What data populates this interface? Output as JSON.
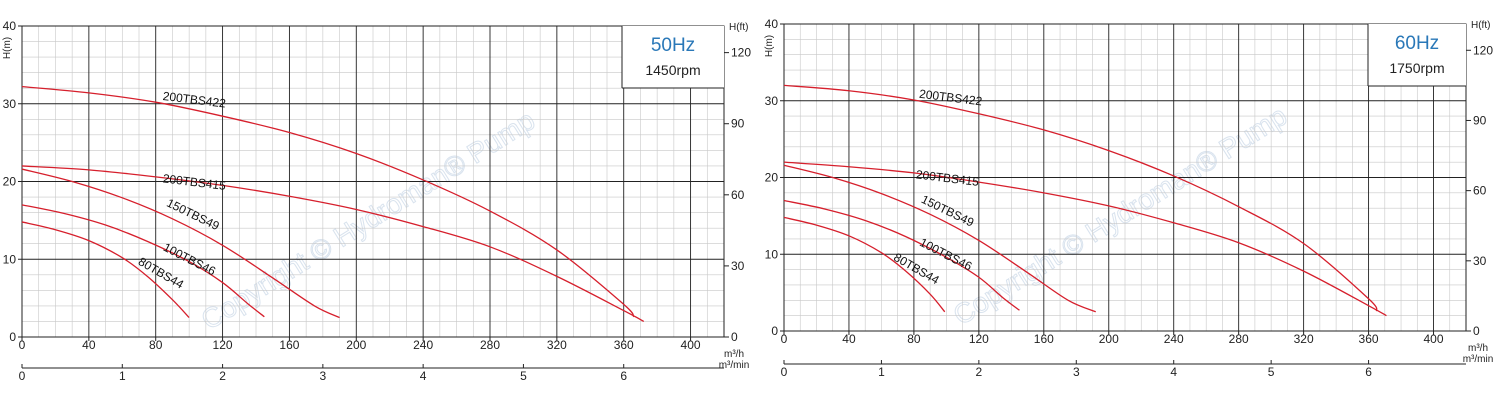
{
  "chart_data": [
    {
      "type": "line",
      "freq_label": "50Hz",
      "rpm_label": "1450rpm",
      "watermark": "Copyright © Hydroman® Pump",
      "ylabel_left": "H(m)",
      "ylabel_right": "H(ft)",
      "x_unit_top": "m³/h",
      "x_unit_bottom": "m³/min",
      "xlim": [
        0,
        420
      ],
      "ylim": [
        0,
        40
      ],
      "xticks": [
        0,
        40,
        80,
        120,
        160,
        200,
        240,
        280,
        320,
        360,
        400
      ],
      "x2ticks": [
        0,
        1,
        2,
        3,
        4,
        5,
        6
      ],
      "yticks": [
        0,
        10,
        20,
        30,
        40
      ],
      "ftticks": [
        0,
        30,
        60,
        90,
        120
      ],
      "grid": true,
      "series": [
        {
          "name": "200TBS422",
          "label_at": [
            84,
            30.5
          ],
          "label_angle": 7,
          "points": [
            [
              0,
              32.2
            ],
            [
              40,
              31.4
            ],
            [
              80,
              30.2
            ],
            [
              120,
              28.4
            ],
            [
              160,
              26.3
            ],
            [
              200,
              23.6
            ],
            [
              240,
              20.2
            ],
            [
              280,
              16.2
            ],
            [
              320,
              11.2
            ],
            [
              360,
              4.2
            ],
            [
              366,
              2.6
            ]
          ]
        },
        {
          "name": "200TBS415",
          "label_at": [
            84,
            19.9
          ],
          "label_angle": 7,
          "points": [
            [
              0,
              22.0
            ],
            [
              40,
              21.5
            ],
            [
              80,
              20.6
            ],
            [
              120,
              19.5
            ],
            [
              160,
              18.1
            ],
            [
              200,
              16.4
            ],
            [
              240,
              14.2
            ],
            [
              280,
              11.6
            ],
            [
              320,
              7.8
            ],
            [
              360,
              3.4
            ],
            [
              372,
              2.0
            ]
          ]
        },
        {
          "name": "150TBS49",
          "label_at": [
            86,
            16.9
          ],
          "label_angle": 26,
          "points": [
            [
              0,
              21.6
            ],
            [
              30,
              20.0
            ],
            [
              60,
              17.9
            ],
            [
              90,
              15.2
            ],
            [
              120,
              11.8
            ],
            [
              150,
              7.6
            ],
            [
              175,
              4.0
            ],
            [
              190,
              2.5
            ]
          ]
        },
        {
          "name": "100TBS46",
          "label_at": [
            84,
            11.2
          ],
          "label_angle": 27,
          "points": [
            [
              0,
              17.0
            ],
            [
              25,
              15.9
            ],
            [
              50,
              14.4
            ],
            [
              75,
              12.3
            ],
            [
              100,
              9.7
            ],
            [
              120,
              7.0
            ],
            [
              135,
              4.3
            ],
            [
              145,
              2.6
            ]
          ]
        },
        {
          "name": "80TBS44",
          "label_at": [
            69,
            9.4
          ],
          "label_angle": 30,
          "points": [
            [
              0,
              14.8
            ],
            [
              20,
              13.8
            ],
            [
              40,
              12.4
            ],
            [
              60,
              10.2
            ],
            [
              75,
              7.8
            ],
            [
              90,
              4.8
            ],
            [
              100,
              2.5
            ]
          ]
        }
      ]
    },
    {
      "type": "line",
      "freq_label": "60Hz",
      "rpm_label": "1750rpm",
      "watermark": "Copyright © Hydroman® Pump",
      "ylabel_left": "H(m)",
      "ylabel_right": "H(ft)",
      "x_unit_top": "m³/h",
      "x_unit_bottom": "m³/min",
      "xlim": [
        0,
        420
      ],
      "ylim": [
        0,
        40
      ],
      "xticks": [
        0,
        40,
        80,
        120,
        160,
        200,
        240,
        280,
        320,
        360,
        400
      ],
      "x2ticks": [
        0,
        1,
        2,
        3,
        4,
        5,
        6
      ],
      "yticks": [
        0,
        10,
        20,
        30,
        40
      ],
      "ftticks": [
        0,
        30,
        60,
        90,
        120
      ],
      "grid": true,
      "series": [
        {
          "name": "200TBS422",
          "label_at": [
            83,
            30.4
          ],
          "label_angle": 7,
          "points": [
            [
              0,
              32.0
            ],
            [
              40,
              31.3
            ],
            [
              80,
              30.1
            ],
            [
              120,
              28.3
            ],
            [
              160,
              26.2
            ],
            [
              200,
              23.5
            ],
            [
              240,
              20.2
            ],
            [
              280,
              16.2
            ],
            [
              320,
              11.4
            ],
            [
              360,
              4.2
            ],
            [
              365,
              2.6
            ]
          ]
        },
        {
          "name": "200TBS415",
          "label_at": [
            81,
            19.9
          ],
          "label_angle": 7,
          "points": [
            [
              0,
              22.0
            ],
            [
              40,
              21.4
            ],
            [
              80,
              20.6
            ],
            [
              120,
              19.4
            ],
            [
              160,
              18.0
            ],
            [
              200,
              16.3
            ],
            [
              240,
              14.1
            ],
            [
              280,
              11.5
            ],
            [
              320,
              7.8
            ],
            [
              360,
              3.3
            ],
            [
              371,
              2.0
            ]
          ]
        },
        {
          "name": "150TBS49",
          "label_at": [
            84,
            16.8
          ],
          "label_angle": 26,
          "points": [
            [
              0,
              21.6
            ],
            [
              30,
              20.0
            ],
            [
              60,
              17.9
            ],
            [
              90,
              15.2
            ],
            [
              120,
              11.8
            ],
            [
              150,
              7.6
            ],
            [
              175,
              4.0
            ],
            [
              192,
              2.5
            ]
          ]
        },
        {
          "name": "100TBS46",
          "label_at": [
            83,
            11.2
          ],
          "label_angle": 27,
          "points": [
            [
              0,
              17.0
            ],
            [
              25,
              15.9
            ],
            [
              50,
              14.4
            ],
            [
              75,
              12.3
            ],
            [
              100,
              9.6
            ],
            [
              120,
              7.0
            ],
            [
              135,
              4.3
            ],
            [
              145,
              2.7
            ]
          ]
        },
        {
          "name": "80TBS44",
          "label_at": [
            67,
            9.3
          ],
          "label_angle": 30,
          "points": [
            [
              0,
              14.8
            ],
            [
              20,
              13.8
            ],
            [
              40,
              12.4
            ],
            [
              60,
              10.2
            ],
            [
              75,
              7.8
            ],
            [
              90,
              4.8
            ],
            [
              99,
              2.5
            ]
          ]
        }
      ]
    }
  ],
  "colors": {
    "curve": "#d61f2c",
    "axis": "#222222",
    "major_grid": "#222222",
    "minor_grid": "#c8c8c8",
    "freq_text": "#2a78b8"
  }
}
